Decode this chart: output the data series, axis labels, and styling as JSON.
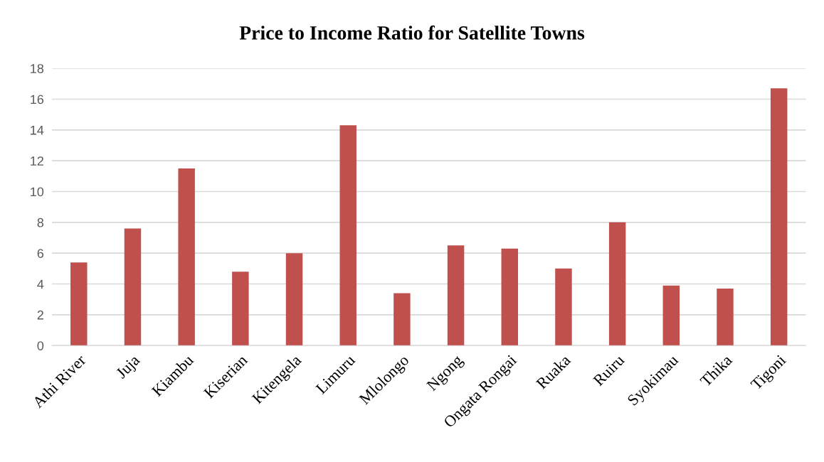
{
  "chart_data": {
    "type": "bar",
    "title": "Price to Income Ratio for Satellite Towns",
    "categories": [
      "Athi River",
      "Juja",
      "Kiambu",
      "Kiserian",
      "Kitengela",
      "Limuru",
      "Mlolongo",
      "Ngong",
      "Ongata Rongai",
      "Ruaka",
      "Ruiru",
      "Syokimau",
      "Thika",
      "Tigoni"
    ],
    "values": [
      5.4,
      7.6,
      11.5,
      4.8,
      6.0,
      14.3,
      3.4,
      6.5,
      6.3,
      5.0,
      8.0,
      3.9,
      3.7,
      16.7
    ],
    "color": "#c0504d",
    "ylim": [
      0,
      18
    ],
    "yticks": [
      0,
      2,
      4,
      6,
      8,
      10,
      12,
      14,
      16,
      18
    ],
    "grid": "y",
    "legend": false
  }
}
